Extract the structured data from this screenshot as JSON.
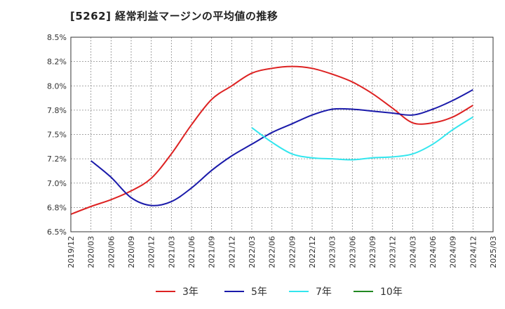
{
  "chart_data": {
    "type": "line",
    "title": "[5262]  経常利益マージンの平均値の推移",
    "xlabel": "",
    "ylabel": "",
    "x_ticks": [
      "2019/12",
      "2020/03",
      "2020/06",
      "2020/09",
      "2020/12",
      "2021/03",
      "2021/06",
      "2021/09",
      "2021/12",
      "2022/03",
      "2022/06",
      "2022/09",
      "2022/12",
      "2023/03",
      "2023/06",
      "2023/09",
      "2023/12",
      "2024/03",
      "2024/06",
      "2024/09",
      "2024/12",
      "2025/03"
    ],
    "y_ticks": [
      "6.5%",
      "6.8%",
      "7.0%",
      "7.2%",
      "7.5%",
      "7.8%",
      "8.0%",
      "8.2%",
      "8.5%"
    ],
    "ylim": [
      6.5,
      8.5
    ],
    "grid": true,
    "legend_position": "bottom",
    "series": [
      {
        "name": "3年",
        "color": "#dd2222",
        "points": [
          [
            "2019/12",
            6.68
          ],
          [
            "2020/03",
            6.76
          ],
          [
            "2020/06",
            6.83
          ],
          [
            "2020/09",
            6.92
          ],
          [
            "2020/12",
            7.05
          ],
          [
            "2021/03",
            7.3
          ],
          [
            "2021/06",
            7.6
          ],
          [
            "2021/09",
            7.86
          ],
          [
            "2021/12",
            8.0
          ],
          [
            "2022/03",
            8.13
          ],
          [
            "2022/06",
            8.18
          ],
          [
            "2022/09",
            8.2
          ],
          [
            "2022/12",
            8.18
          ],
          [
            "2023/03",
            8.12
          ],
          [
            "2023/06",
            8.04
          ],
          [
            "2023/09",
            7.92
          ],
          [
            "2023/12",
            7.77
          ],
          [
            "2024/03",
            7.62
          ],
          [
            "2024/06",
            7.62
          ],
          [
            "2024/09",
            7.68
          ],
          [
            "2024/12",
            7.8
          ]
        ]
      },
      {
        "name": "5年",
        "color": "#1a1aaa",
        "points": [
          [
            "2020/03",
            7.23
          ],
          [
            "2020/06",
            7.06
          ],
          [
            "2020/09",
            6.85
          ],
          [
            "2020/12",
            6.77
          ],
          [
            "2021/03",
            6.81
          ],
          [
            "2021/06",
            6.95
          ],
          [
            "2021/09",
            7.13
          ],
          [
            "2021/12",
            7.28
          ],
          [
            "2022/03",
            7.4
          ],
          [
            "2022/06",
            7.52
          ],
          [
            "2022/09",
            7.61
          ],
          [
            "2022/12",
            7.7
          ],
          [
            "2023/03",
            7.76
          ],
          [
            "2023/06",
            7.76
          ],
          [
            "2023/09",
            7.74
          ],
          [
            "2023/12",
            7.72
          ],
          [
            "2024/03",
            7.7
          ],
          [
            "2024/06",
            7.76
          ],
          [
            "2024/09",
            7.85
          ],
          [
            "2024/12",
            7.96
          ]
        ]
      },
      {
        "name": "7年",
        "color": "#33e6ee",
        "points": [
          [
            "2022/03",
            7.57
          ],
          [
            "2022/06",
            7.42
          ],
          [
            "2022/09",
            7.3
          ],
          [
            "2022/12",
            7.26
          ],
          [
            "2023/03",
            7.25
          ],
          [
            "2023/06",
            7.24
          ],
          [
            "2023/09",
            7.26
          ],
          [
            "2023/12",
            7.27
          ],
          [
            "2024/03",
            7.3
          ],
          [
            "2024/06",
            7.4
          ],
          [
            "2024/09",
            7.55
          ],
          [
            "2024/12",
            7.68
          ]
        ]
      },
      {
        "name": "10年",
        "color": "#228822",
        "points": []
      }
    ]
  }
}
